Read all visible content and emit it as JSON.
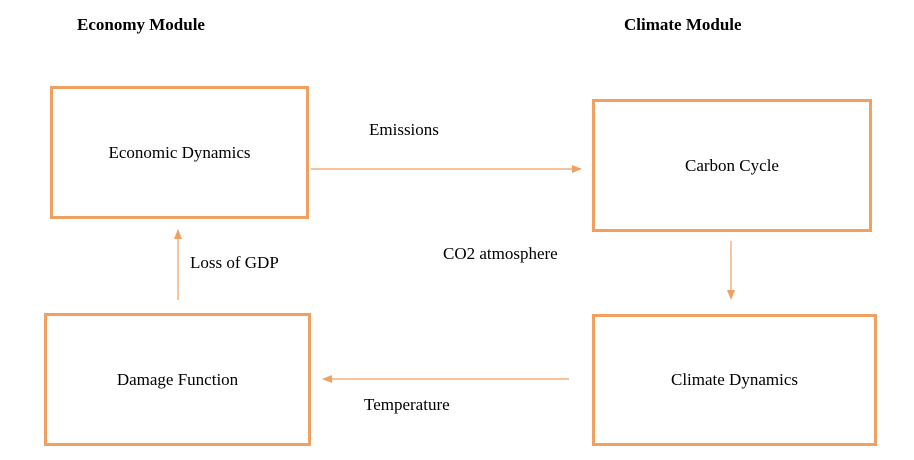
{
  "headings": {
    "economy": "Economy Module",
    "climate": "Climate Module"
  },
  "boxes": {
    "economic_dynamics": "Economic Dynamics",
    "carbon_cycle": "Carbon Cycle",
    "damage_function": "Damage Function",
    "climate_dynamics": "Climate Dynamics"
  },
  "edges": {
    "emissions": "Emissions",
    "co2_atmosphere": "CO2 atmosphere",
    "temperature": "Temperature",
    "loss_of_gdp": "Loss of GDP"
  },
  "colors": {
    "box_border": "#f0a060",
    "arrow": "#f0a060"
  }
}
